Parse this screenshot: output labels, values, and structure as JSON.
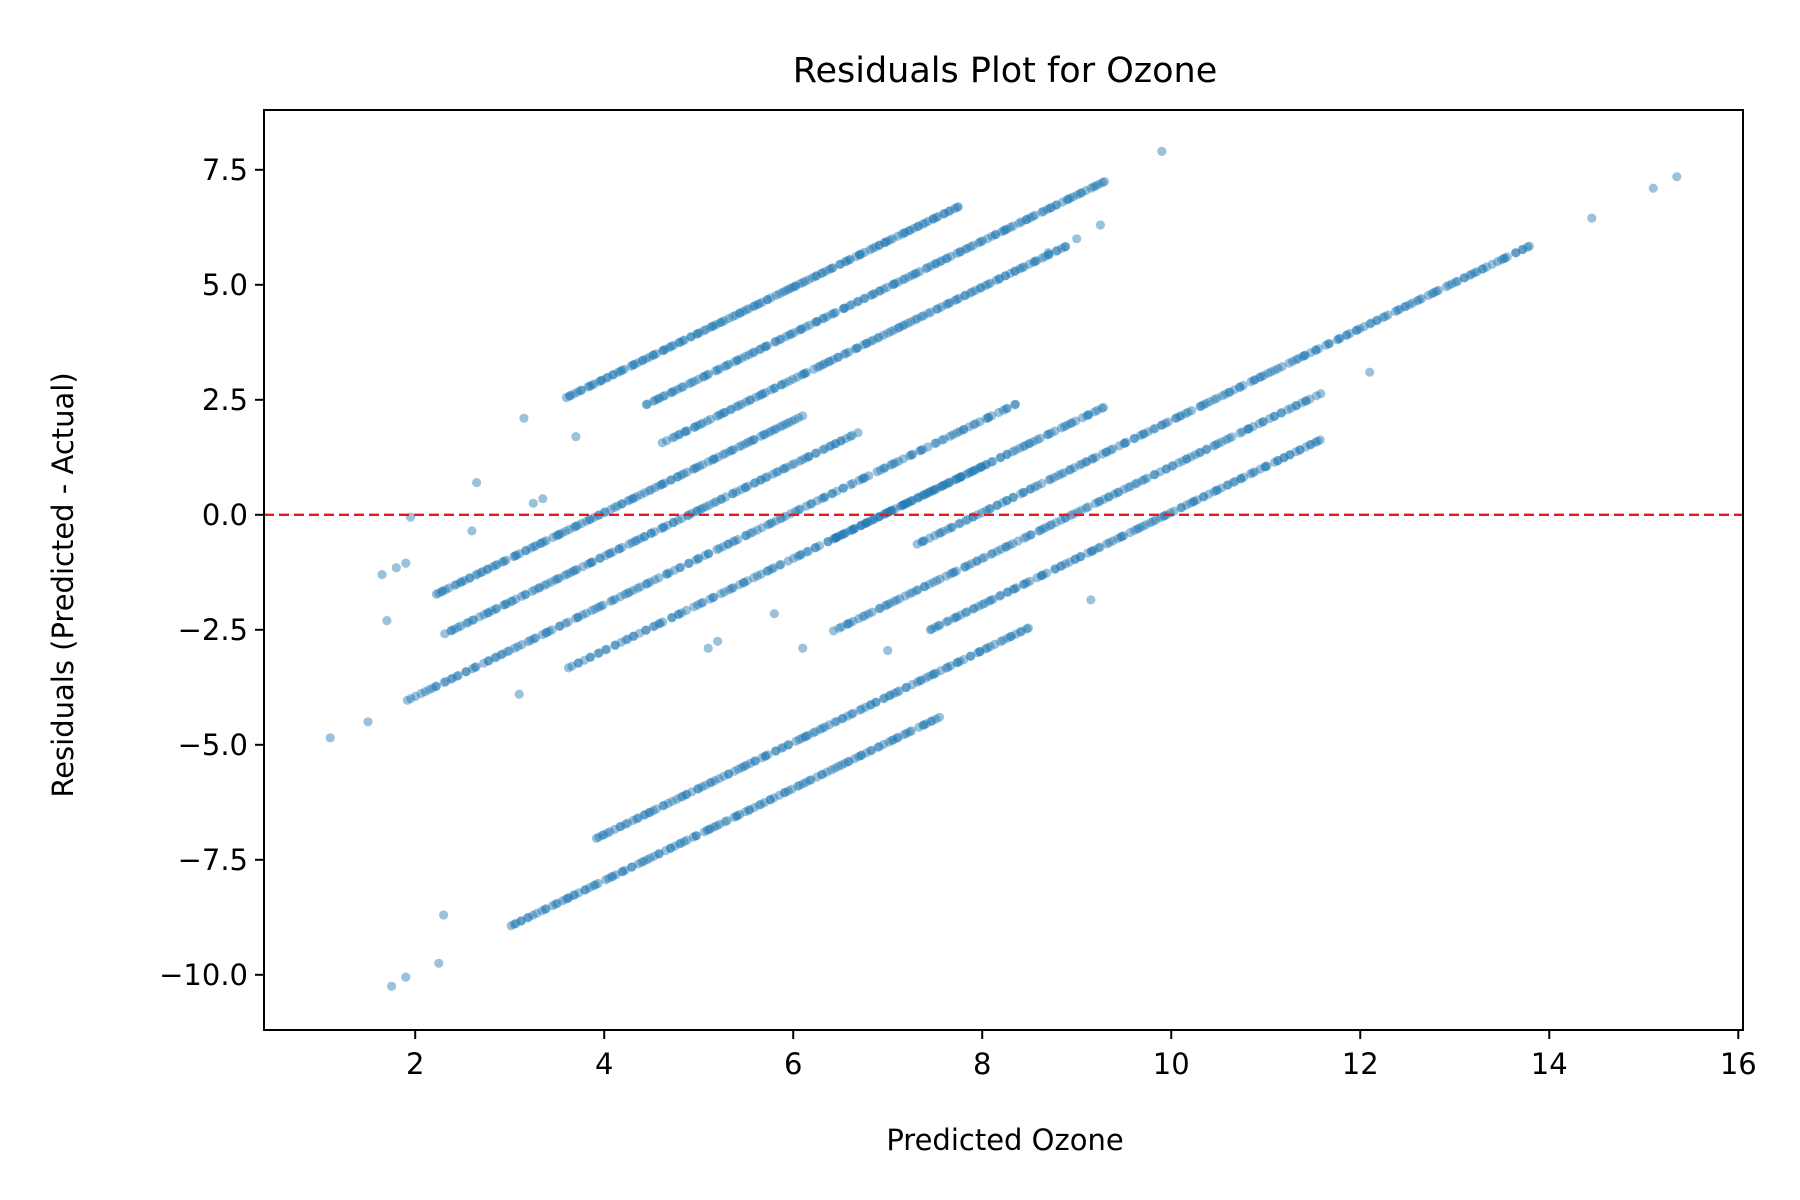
{
  "chart_data": {
    "type": "scatter",
    "title": "Residuals Plot for Ozone",
    "xlabel": "Predicted Ozone",
    "ylabel": "Residuals (Predicted - Actual)",
    "xlim": [
      0.4,
      16.05
    ],
    "ylim": [
      -11.2,
      8.8
    ],
    "x_ticks": [
      2,
      4,
      6,
      8,
      10,
      12,
      14,
      16
    ],
    "y_ticks": [
      7.5,
      5.0,
      2.5,
      0.0,
      -2.5,
      -5.0,
      -7.5,
      -10.0
    ],
    "x_tick_labels": [
      "2",
      "4",
      "6",
      "8",
      "10",
      "12",
      "14",
      "16"
    ],
    "y_tick_labels": [
      "7.5",
      "5.0",
      "2.5",
      "0.0",
      "−2.5",
      "−5.0",
      "−7.5",
      "−10.0"
    ],
    "grid": false,
    "legend": "none",
    "point_color": "#1f77b4",
    "point_alpha": 0.45,
    "reference_line": {
      "y": 0,
      "color": "#e41a1c",
      "style": "dashed"
    },
    "series": [
      {
        "bands": [
          {
            "x_start": 3.6,
            "x_end": 7.8,
            "offset": -1.05,
            "count": 140
          },
          {
            "x_start": 4.4,
            "x_end": 9.3,
            "offset": -2.05,
            "count": 150
          },
          {
            "x_start": 4.6,
            "x_end": 8.9,
            "offset": -3.05,
            "count": 130
          },
          {
            "x_start": 2.2,
            "x_end": 6.1,
            "offset": -3.95,
            "count": 120
          },
          {
            "x_start": 2.3,
            "x_end": 6.7,
            "offset": -4.9,
            "count": 130
          },
          {
            "x_start": 1.9,
            "x_end": 8.4,
            "offset": -5.95,
            "count": 170
          },
          {
            "x_start": 3.6,
            "x_end": 8.0,
            "offset": -6.95,
            "count": 110
          },
          {
            "x_start": 6.4,
            "x_end": 9.3,
            "offset": -6.95,
            "count": 80
          },
          {
            "x_start": 7.3,
            "x_end": 13.8,
            "offset": -7.95,
            "count": 180
          },
          {
            "x_start": 6.4,
            "x_end": 11.6,
            "offset": -8.95,
            "count": 140
          },
          {
            "x_start": 7.4,
            "x_end": 11.6,
            "offset": -9.95,
            "count": 120
          },
          {
            "x_start": 3.9,
            "x_end": 8.5,
            "offset": -10.95,
            "count": 130
          },
          {
            "x_start": 3.0,
            "x_end": 7.6,
            "offset": -11.95,
            "count": 130
          }
        ],
        "outliers": [
          [
            1.1,
            -4.85
          ],
          [
            1.5,
            -4.5
          ],
          [
            1.65,
            -1.3
          ],
          [
            1.8,
            -1.15
          ],
          [
            1.9,
            -1.05
          ],
          [
            1.95,
            -0.05
          ],
          [
            1.7,
            -2.3
          ],
          [
            2.3,
            -8.7
          ],
          [
            2.25,
            -9.75
          ],
          [
            1.9,
            -10.05
          ],
          [
            1.75,
            -10.25
          ],
          [
            2.65,
            0.7
          ],
          [
            2.6,
            -0.35
          ],
          [
            3.15,
            2.1
          ],
          [
            3.25,
            0.25
          ],
          [
            3.35,
            0.35
          ],
          [
            3.6,
            2.55
          ],
          [
            3.7,
            1.7
          ],
          [
            3.1,
            -3.9
          ],
          [
            5.1,
            -2.9
          ],
          [
            5.2,
            -2.75
          ],
          [
            5.8,
            -2.15
          ],
          [
            6.1,
            -2.9
          ],
          [
            7.0,
            -2.95
          ],
          [
            9.15,
            -1.85
          ],
          [
            8.7,
            5.7
          ],
          [
            9.0,
            6.0
          ],
          [
            9.25,
            6.3
          ],
          [
            9.9,
            7.9
          ],
          [
            12.1,
            3.1
          ],
          [
            14.45,
            6.45
          ],
          [
            15.1,
            7.1
          ],
          [
            15.35,
            7.35
          ]
        ]
      }
    ]
  }
}
